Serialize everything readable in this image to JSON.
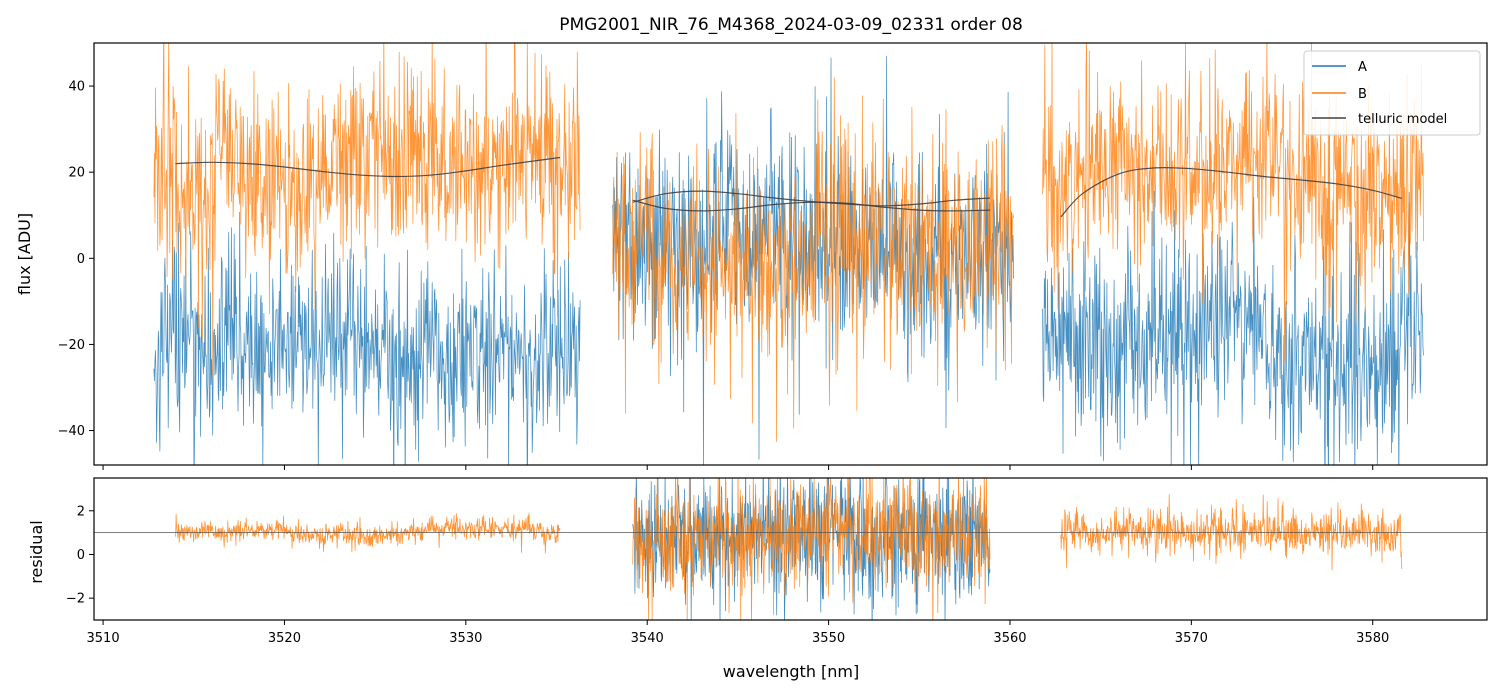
{
  "chart_data": {
    "type": "line",
    "title": "PMG2001_NIR_76_M4368_2024-03-09_02331  order 08",
    "xlabel": "wavelength [nm]",
    "xlim": [
      3509.5,
      3586.3
    ],
    "xticks": [
      3510,
      3520,
      3530,
      3540,
      3550,
      3560,
      3570,
      3580
    ],
    "xtick_labels": [
      "3510",
      "3520",
      "3530",
      "3540",
      "3550",
      "3560",
      "3570",
      "3580"
    ],
    "segments": [
      {
        "xmin": 3512.8,
        "xmax": 3536.3,
        "fit_min": 3514.0,
        "fit_max": 3535.2
      },
      {
        "xmin": 3538.1,
        "xmax": 3560.2,
        "fit_min": 3539.2,
        "fit_max": 3558.9
      },
      {
        "xmin": 3561.8,
        "xmax": 3582.8,
        "fit_min": 3562.8,
        "fit_max": 3581.6
      }
    ],
    "panels": [
      {
        "name": "flux",
        "ylabel": "flux [ADU]",
        "ylim": [
          -48,
          50
        ],
        "yticks": [
          -40,
          -20,
          0,
          20,
          40
        ],
        "ytick_labels": [
          "−40",
          "−20",
          "0",
          "20",
          "40"
        ],
        "series": [
          {
            "name": "A",
            "color": "#1f77b4",
            "style": "noisy spectrum",
            "segment_levels": [
              -20,
              3,
              -20
            ],
            "noise_sigma": [
              10,
              12,
              11
            ]
          },
          {
            "name": "B",
            "color": "#ff7f0e",
            "style": "noisy spectrum",
            "segment_levels": [
              22,
              3,
              20
            ],
            "noise_sigma": [
              11,
              12,
              11
            ]
          },
          {
            "name": "telluric model",
            "color": "#404040",
            "style": "smooth line",
            "curves": [
              {
                "x": [
                  3514,
                  3516,
                  3518,
                  3520,
                  3522,
                  3524,
                  3526,
                  3528,
                  3530,
                  3532,
                  3535.2
                ],
                "y": [
                  22.0,
                  22.3,
                  22.0,
                  21.2,
                  20.2,
                  19.4,
                  19.0,
                  19.3,
                  20.3,
                  21.6,
                  23.4
                ]
              },
              {
                "x": [
                  3539.2,
                  3541,
                  3543,
                  3545,
                  3547,
                  3549,
                  3551,
                  3553,
                  3555,
                  3557,
                  3558.9
                ],
                "y": [
                  13.0,
                  15.0,
                  15.6,
                  15.0,
                  14.0,
                  13.2,
                  12.6,
                  12.2,
                  12.6,
                  13.5,
                  14.0
                ]
              },
              {
                "x": [
                  3539.2,
                  3541,
                  3543,
                  3545,
                  3547,
                  3549,
                  3551,
                  3553,
                  3555,
                  3557,
                  3558.9
                ],
                "y": [
                  13.5,
                  11.6,
                  11.0,
                  11.5,
                  12.5,
                  13.0,
                  12.8,
                  11.9,
                  11.2,
                  11.0,
                  11.2
                ]
              },
              {
                "x": [
                  3562.8,
                  3564,
                  3566,
                  3568,
                  3570,
                  3572,
                  3574,
                  3576,
                  3578,
                  3580,
                  3581.6
                ],
                "y": [
                  9.6,
                  15.0,
                  19.6,
                  21.0,
                  20.8,
                  20.0,
                  19.0,
                  18.2,
                  17.3,
                  15.8,
                  13.9
                ]
              }
            ]
          }
        ],
        "legend": {
          "location": "upper right",
          "entries": [
            "A",
            "B",
            "telluric model"
          ]
        }
      },
      {
        "name": "residual",
        "ylabel": "residual",
        "ylim": [
          -3,
          3.5
        ],
        "yticks": [
          -2,
          0,
          2
        ],
        "ytick_labels": [
          "−2",
          "0",
          "2"
        ],
        "reference_line": 1,
        "series": [
          {
            "name": "A",
            "color": "#1f77b4",
            "style": "noisy residual",
            "segments_present": [
              2
            ],
            "noise_sigma": 1.5
          },
          {
            "name": "B",
            "color": "#ff7f0e",
            "style": "noisy residual",
            "segments_present": [
              1,
              2,
              3
            ],
            "noise_sigma": [
              0.25,
              1.3,
              0.5
            ]
          }
        ]
      }
    ]
  }
}
